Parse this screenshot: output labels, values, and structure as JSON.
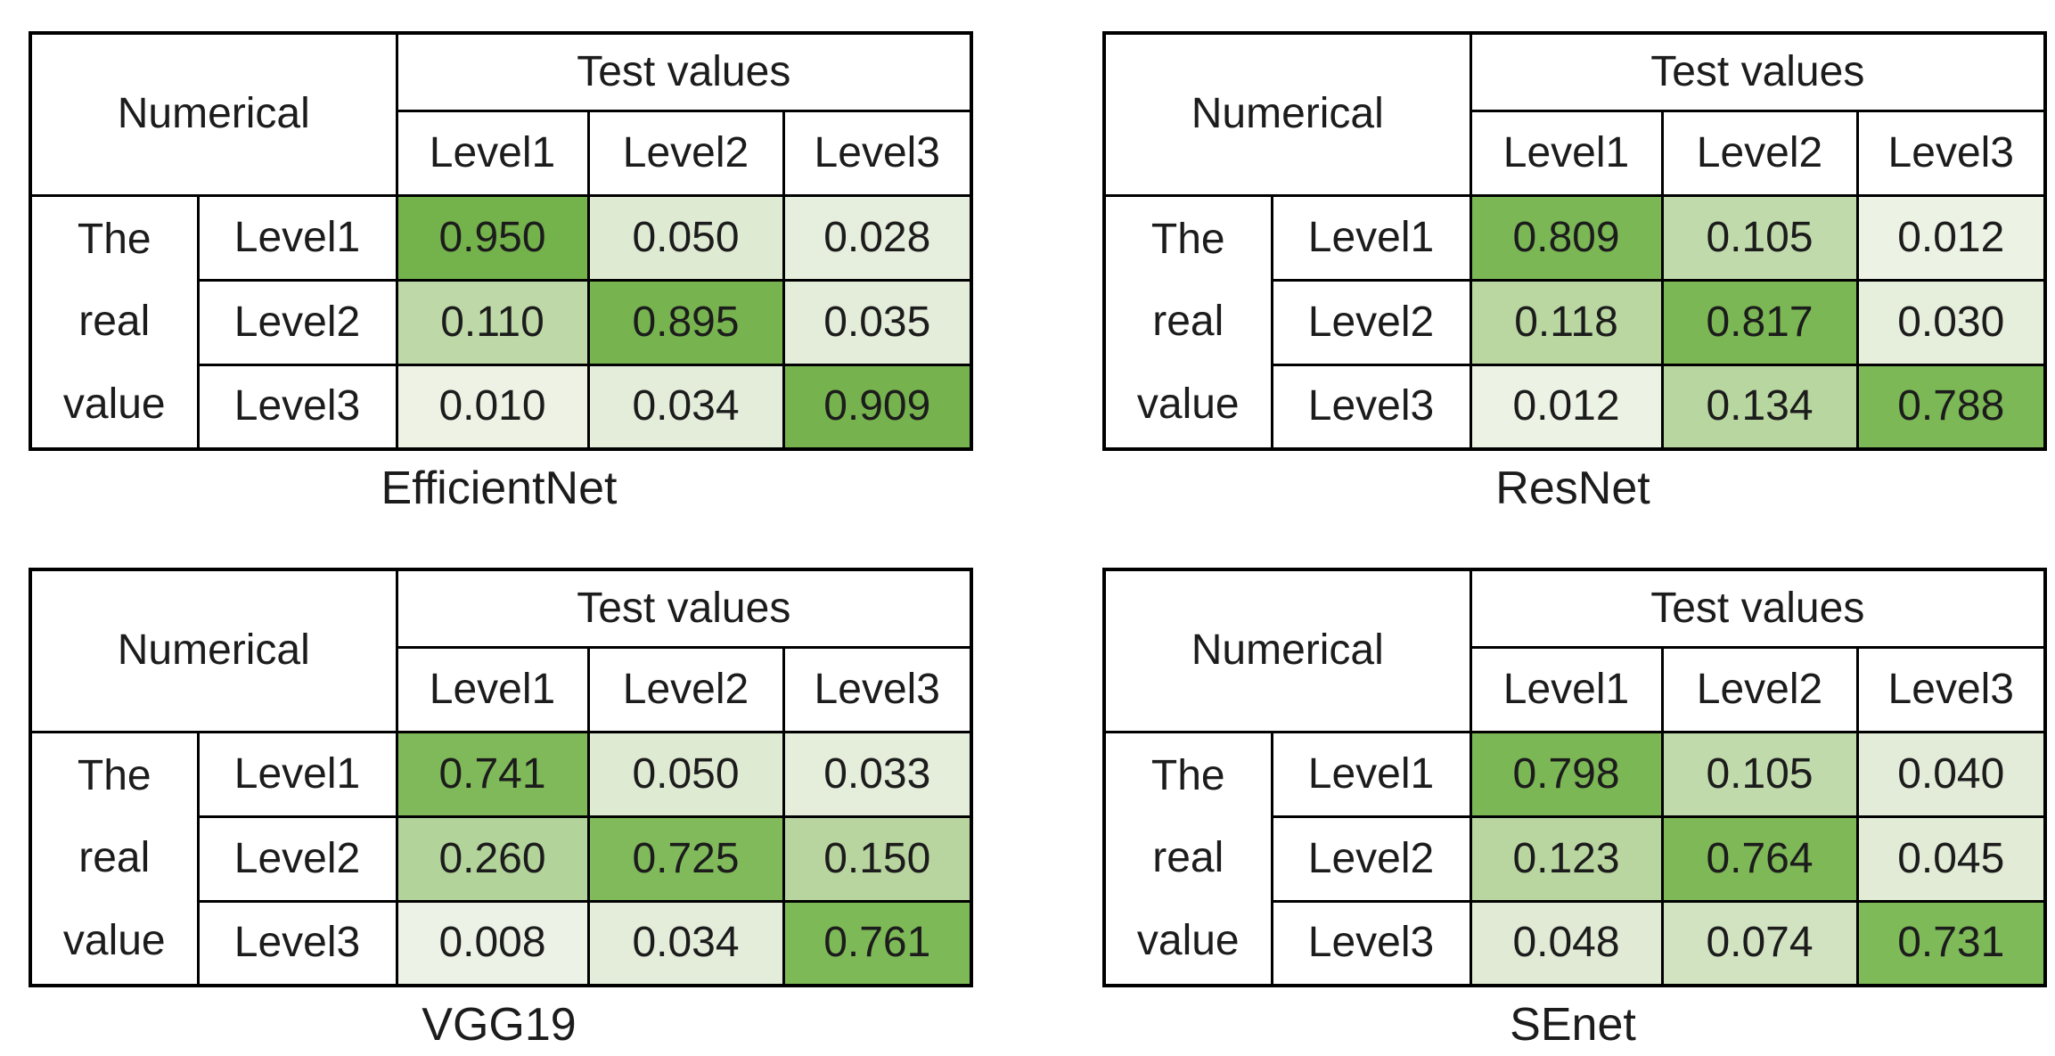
{
  "figure": {
    "background": "#ffffff",
    "text_color": "#1c1c1c",
    "grid_color": "#000000",
    "labels": {
      "corner": "Numerical",
      "col_group": "Test values",
      "col_labels": [
        "Level1",
        "Level2",
        "Level3"
      ],
      "row_group_lines": [
        "The",
        "real",
        "value"
      ],
      "row_labels": [
        "Level1",
        "Level2",
        "Level3"
      ]
    },
    "color_anchors": [
      [
        0.0,
        "#F0F4EA"
      ],
      [
        0.05,
        "#DFEAD3"
      ],
      [
        0.12,
        "#B9D6A0"
      ],
      [
        0.27,
        "#B2D399"
      ],
      [
        0.72,
        "#80BA5A"
      ],
      [
        0.95,
        "#74B24C"
      ]
    ]
  },
  "chart_data": [
    {
      "type": "heatmap",
      "title": "EfficientNet",
      "x_axis": "Test values",
      "y_axis": "The real value",
      "x": [
        "Level1",
        "Level2",
        "Level3"
      ],
      "y": [
        "Level1",
        "Level2",
        "Level3"
      ],
      "values": [
        [
          0.95,
          0.05,
          0.028
        ],
        [
          0.11,
          0.895,
          0.035
        ],
        [
          0.01,
          0.034,
          0.909
        ]
      ],
      "cell_text": [
        [
          "0.950",
          "0.050",
          "0.028"
        ],
        [
          "0.110",
          "0.895",
          "0.035"
        ],
        [
          "0.010",
          "0.034",
          "0.909"
        ]
      ]
    },
    {
      "type": "heatmap",
      "title": "ResNet",
      "x_axis": "Test values",
      "y_axis": "The real value",
      "x": [
        "Level1",
        "Level2",
        "Level3"
      ],
      "y": [
        "Level1",
        "Level2",
        "Level3"
      ],
      "values": [
        [
          0.809,
          0.105,
          0.012
        ],
        [
          0.118,
          0.817,
          0.03
        ],
        [
          0.012,
          0.134,
          0.788
        ]
      ],
      "cell_text": [
        [
          "0.809",
          "0.105",
          "0.012"
        ],
        [
          "0.118",
          "0.817",
          "0.030"
        ],
        [
          "0.012",
          "0.134",
          "0.788"
        ]
      ]
    },
    {
      "type": "heatmap",
      "title": "VGG19",
      "x_axis": "Test values",
      "y_axis": "The real value",
      "x": [
        "Level1",
        "Level2",
        "Level3"
      ],
      "y": [
        "Level1",
        "Level2",
        "Level3"
      ],
      "values": [
        [
          0.741,
          0.05,
          0.033
        ],
        [
          0.26,
          0.725,
          0.15
        ],
        [
          0.008,
          0.034,
          0.761
        ]
      ],
      "cell_text": [
        [
          "0.741",
          "0.050",
          "0.033"
        ],
        [
          "0.260",
          "0.725",
          "0.150"
        ],
        [
          "0.008",
          "0.034",
          "0.761"
        ]
      ]
    },
    {
      "type": "heatmap",
      "title": "SEnet",
      "x_axis": "Test values",
      "y_axis": "The real value",
      "x": [
        "Level1",
        "Level2",
        "Level3"
      ],
      "y": [
        "Level1",
        "Level2",
        "Level3"
      ],
      "values": [
        [
          0.798,
          0.105,
          0.04
        ],
        [
          0.123,
          0.764,
          0.045
        ],
        [
          0.048,
          0.074,
          0.731
        ]
      ],
      "cell_text": [
        [
          "0.798",
          "0.105",
          "0.040"
        ],
        [
          "0.123",
          "0.764",
          "0.045"
        ],
        [
          "0.048",
          "0.074",
          "0.731"
        ]
      ]
    }
  ]
}
